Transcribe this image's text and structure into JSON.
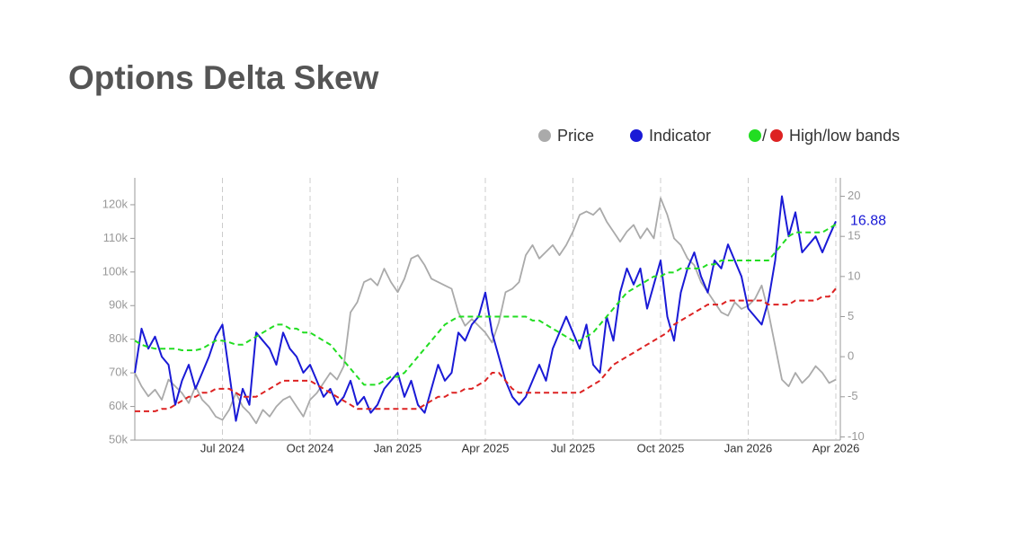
{
  "chart_data": {
    "type": "line",
    "title": "Options Delta Skew",
    "bands_legend": "High/low bands",
    "categories": [
      null,
      null,
      null,
      null,
      null,
      null,
      null,
      null,
      null,
      null,
      null,
      null,
      null,
      "Jul 2024",
      null,
      null,
      null,
      null,
      null,
      null,
      null,
      null,
      null,
      null,
      null,
      null,
      "Oct 2024",
      null,
      null,
      null,
      null,
      null,
      null,
      null,
      null,
      null,
      null,
      null,
      null,
      "Jan 2025",
      null,
      null,
      null,
      null,
      null,
      null,
      null,
      null,
      null,
      null,
      null,
      null,
      "Apr 2025",
      null,
      null,
      null,
      null,
      null,
      null,
      null,
      null,
      null,
      null,
      null,
      null,
      "Jul 2025",
      null,
      null,
      null,
      null,
      null,
      null,
      null,
      null,
      null,
      null,
      null,
      null,
      "Oct 2025",
      null,
      null,
      null,
      null,
      null,
      null,
      null,
      null,
      null,
      null,
      null,
      null,
      "Jan 2026",
      null,
      null,
      null,
      null,
      null,
      null,
      null,
      null,
      null,
      null,
      null,
      null,
      "Apr 2026"
    ],
    "series": [
      {
        "name": "Price",
        "color": "#aaaaaa",
        "axis": "y",
        "values": [
          70000,
          66000,
          63000,
          65000,
          62000,
          68000,
          66000,
          64000,
          61000,
          66000,
          62000,
          60000,
          57000,
          56000,
          59000,
          64000,
          60000,
          58000,
          55000,
          59000,
          57000,
          60000,
          62000,
          63000,
          60000,
          57000,
          62000,
          64000,
          67000,
          70000,
          68000,
          72000,
          88000,
          91000,
          97000,
          98000,
          96000,
          101000,
          97000,
          94000,
          98000,
          104000,
          105000,
          102000,
          98000,
          97000,
          96000,
          95000,
          88000,
          84000,
          86000,
          84000,
          82000,
          79000,
          85000,
          94000,
          95000,
          97000,
          105000,
          108000,
          104000,
          106000,
          108000,
          105000,
          108000,
          112000,
          117000,
          118000,
          117000,
          119000,
          115000,
          112000,
          109000,
          112000,
          114000,
          110000,
          113000,
          110000,
          122000,
          117000,
          110000,
          108000,
          104000,
          102000,
          97000,
          94000,
          91000,
          88000,
          87000,
          91000,
          89000,
          90000,
          92000,
          96000,
          88000,
          78000,
          68000,
          66000,
          70000,
          67000,
          69000,
          72000,
          70000,
          67000,
          68000
        ]
      },
      {
        "name": "Indicator",
        "color": "#1a1ad6",
        "axis": "y2",
        "values": [
          -2,
          3.5,
          1,
          2.5,
          0,
          -1,
          -6,
          -3,
          -1,
          -4,
          -2,
          0,
          2.5,
          4,
          -2,
          -8,
          -4,
          -6,
          3,
          2,
          1,
          -1,
          3,
          1,
          0,
          -2,
          -1,
          -3,
          -5,
          -4,
          -6,
          -5,
          -3,
          -6,
          -5,
          -7,
          -6,
          -4,
          -3,
          -2,
          -5,
          -3,
          -6,
          -7,
          -4,
          -1,
          -3,
          -2,
          3,
          2,
          4,
          5,
          8,
          3,
          0,
          -3,
          -5,
          -6,
          -5,
          -3,
          -1,
          -3,
          1,
          3,
          5,
          3,
          1,
          4,
          -1,
          -2,
          5,
          2,
          8,
          11,
          9,
          11,
          6,
          9,
          12,
          5,
          2,
          8,
          11,
          13,
          10,
          8,
          12,
          11,
          14,
          12,
          10,
          6,
          5,
          4,
          7,
          12,
          20,
          15,
          18,
          13,
          14,
          15,
          13,
          15,
          16.88
        ]
      },
      {
        "color": "#22dd22",
        "axis": "y2",
        "dashed": true,
        "values": [
          2,
          1.5,
          1.2,
          1,
          1,
          1,
          1,
          0.8,
          0.8,
          0.8,
          1,
          1.5,
          2,
          2,
          1.8,
          1.5,
          1.5,
          2,
          2.5,
          3,
          3.5,
          4,
          4,
          3.5,
          3.5,
          3,
          3,
          2.5,
          2,
          1.5,
          0.5,
          -0.5,
          -1.5,
          -2.5,
          -3.5,
          -3.5,
          -3.5,
          -3,
          -2.5,
          -2.5,
          -2,
          -1,
          0,
          1,
          2,
          3,
          4,
          4.5,
          5,
          5,
          5,
          5,
          5,
          5,
          5,
          5,
          5,
          5,
          5,
          4.5,
          4.5,
          4,
          3.5,
          3,
          2.5,
          2,
          2,
          2.5,
          3,
          4,
          5,
          6,
          7,
          8,
          8.5,
          9,
          9.5,
          10,
          10,
          10.5,
          10.5,
          11,
          11,
          11,
          11,
          11.5,
          11.5,
          12,
          12,
          12,
          12,
          12,
          12,
          12,
          12,
          13,
          14,
          15,
          15.5,
          15.5,
          15.5,
          15.5,
          15.5,
          16,
          16.5
        ]
      },
      {
        "color": "#dd2222",
        "axis": "y2",
        "dashed": true,
        "values": [
          -6.8,
          -6.8,
          -6.8,
          -6.8,
          -6.5,
          -6.5,
          -6,
          -5.5,
          -5,
          -5,
          -4.5,
          -4.5,
          -4,
          -4,
          -4,
          -4.5,
          -5,
          -5,
          -5,
          -4.5,
          -4,
          -3.5,
          -3,
          -3,
          -3,
          -3,
          -3,
          -3.5,
          -4,
          -4.5,
          -5,
          -5.5,
          -6,
          -6.5,
          -6.5,
          -6.5,
          -6.5,
          -6.5,
          -6.5,
          -6.5,
          -6.5,
          -6.5,
          -6.5,
          -6,
          -5.5,
          -5,
          -5,
          -4.5,
          -4.5,
          -4,
          -4,
          -3.5,
          -3,
          -2,
          -2,
          -3,
          -4,
          -4.5,
          -4.5,
          -4.5,
          -4.5,
          -4.5,
          -4.5,
          -4.5,
          -4.5,
          -4.5,
          -4.5,
          -4,
          -3.5,
          -3,
          -2,
          -1,
          -0.5,
          0,
          0.5,
          1,
          1.5,
          2,
          2.5,
          3,
          4,
          4.5,
          5,
          5.5,
          6,
          6.5,
          6.5,
          6.5,
          7,
          7,
          7,
          7,
          7,
          7,
          6.5,
          6.5,
          6.5,
          6.5,
          7,
          7,
          7,
          7,
          7.5,
          7.5,
          8.5
        ]
      }
    ],
    "ylim": [
      50000,
      128000
    ],
    "yticks": [
      {
        "value": 50000,
        "label": "50k"
      },
      {
        "value": 60000,
        "label": "60k"
      },
      {
        "value": 70000,
        "label": "70k"
      },
      {
        "value": 80000,
        "label": "80k"
      },
      {
        "value": 90000,
        "label": "90k"
      },
      {
        "value": 100000,
        "label": "100k"
      },
      {
        "value": 110000,
        "label": "110k"
      },
      {
        "value": 120000,
        "label": "120k"
      }
    ],
    "y2lim": [
      -10.4,
      22.3
    ],
    "y2ticks": [
      -10,
      -5,
      0,
      5,
      10,
      15,
      20
    ],
    "xgrid": true
  }
}
